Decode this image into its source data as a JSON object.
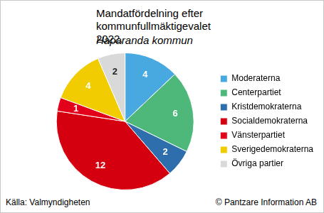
{
  "chart_data": {
    "type": "pie",
    "title": "Mandatfördelning efter kommunfullmäktigevalet 2022.",
    "subtitle": "Haparanda kommun",
    "categories": [
      "Moderaterna",
      "Centerpartiet",
      "Kristdemokraterna",
      "Socialdemokraterna",
      "Vänsterpartiet",
      "Sverigedemokraterna",
      "Övriga partier"
    ],
    "values": [
      4,
      6,
      2,
      12,
      1,
      4,
      2
    ],
    "colors": [
      "#47a9e0",
      "#4db87a",
      "#2f6ead",
      "#d4000f",
      "#e3001b",
      "#f0cc00",
      "#d9d9d9"
    ],
    "data_labels": true,
    "legend": "right",
    "source": "Källa: Valmyndigheten",
    "credit": "© Pantzare Information AB"
  }
}
